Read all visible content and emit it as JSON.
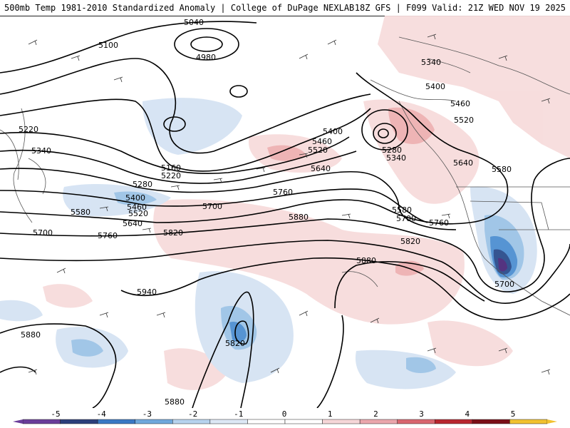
{
  "header": {
    "left": "500mb Temp 1981-2010 Standardized Anomaly | College of DuPage NEXLAB",
    "right": "18Z GFS | F099 Valid: 21Z WED NOV 19 2025"
  },
  "contour_labels": [
    {
      "text": "5040"
    },
    {
      "text": "4980"
    },
    {
      "text": "5100"
    },
    {
      "text": "5220"
    },
    {
      "text": "5340"
    },
    {
      "text": "5160"
    },
    {
      "text": "5220"
    },
    {
      "text": "5280"
    },
    {
      "text": "5400"
    },
    {
      "text": "5460"
    },
    {
      "text": "5520"
    },
    {
      "text": "5640"
    },
    {
      "text": "5580"
    },
    {
      "text": "5700"
    },
    {
      "text": "5760"
    },
    {
      "text": "5820"
    },
    {
      "text": "5880"
    },
    {
      "text": "5940"
    },
    {
      "text": "5820"
    },
    {
      "text": "5880"
    },
    {
      "text": "5880"
    },
    {
      "text": "5400"
    },
    {
      "text": "5460"
    },
    {
      "text": "5520"
    },
    {
      "text": "5640"
    },
    {
      "text": "5700"
    },
    {
      "text": "5760"
    },
    {
      "text": "5280"
    },
    {
      "text": "5340"
    },
    {
      "text": "5580"
    },
    {
      "text": "5700"
    },
    {
      "text": "5760"
    },
    {
      "text": "5820"
    },
    {
      "text": "5880"
    },
    {
      "text": "5340"
    },
    {
      "text": "5400"
    },
    {
      "text": "5460"
    },
    {
      "text": "5520"
    },
    {
      "text": "5640"
    },
    {
      "text": "5580"
    },
    {
      "text": "5700"
    }
  ],
  "colorbar": {
    "ticks": [
      "-5",
      "-4",
      "-3",
      "-2",
      "-1",
      "0",
      "1",
      "2",
      "3",
      "4",
      "5"
    ],
    "colors": [
      "#6a3d9a",
      "#2c3e7a",
      "#3a78c4",
      "#6fa8dc",
      "#b7d3ee",
      "#dde8f5",
      "#ffffff",
      "#ffffff",
      "#f6d6d8",
      "#eba6ac",
      "#d9666f",
      "#b8262f",
      "#7a0f17",
      "#f2c230"
    ]
  },
  "colors": {
    "neg_light": "#d5e3f3",
    "neg_mid": "#9cc3e6",
    "neg_strong": "#4d8fd1",
    "neg_deep": "#2b4c8c",
    "neg_darkest": "#4b2a7a",
    "pos_light": "#f7dcdc",
    "pos_mid": "#eeb0b2",
    "pos_strong": "#e07c82"
  }
}
